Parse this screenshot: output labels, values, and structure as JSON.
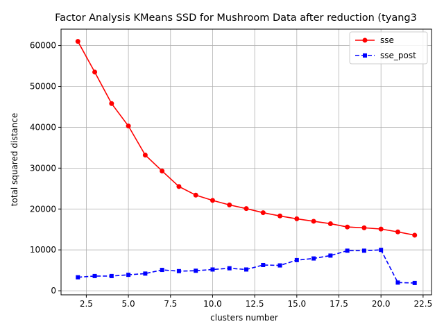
{
  "chart_data": {
    "type": "line",
    "title": "Factor Analysis KMeans SSD for Mushroom Data after reduction (tyang3",
    "xlabel": "clusters number",
    "ylabel": "total squared distance",
    "xlim": [
      1.0,
      23.0
    ],
    "ylim": [
      -1000,
      64000
    ],
    "xticks": [
      2.5,
      5.0,
      7.5,
      10.0,
      12.5,
      15.0,
      17.5,
      20.0,
      22.5
    ],
    "xtick_labels": [
      "2.5",
      "5.0",
      "7.5",
      "10.0",
      "12.5",
      "15.0",
      "17.5",
      "20.0",
      "22.5"
    ],
    "yticks": [
      0,
      10000,
      20000,
      30000,
      40000,
      50000,
      60000
    ],
    "ytick_labels": [
      "0",
      "10000",
      "20000",
      "30000",
      "40000",
      "50000",
      "60000"
    ],
    "grid": true,
    "legend_position": "top-right",
    "x": [
      2,
      3,
      4,
      5,
      6,
      7,
      8,
      9,
      10,
      11,
      12,
      13,
      14,
      15,
      16,
      17,
      18,
      19,
      20,
      21,
      22
    ],
    "series": [
      {
        "name": "sse",
        "color": "#ff0000",
        "line_style": "solid",
        "marker": "circle",
        "values": [
          61000,
          53500,
          45800,
          40300,
          33200,
          29300,
          25500,
          23400,
          22100,
          21000,
          20100,
          19100,
          18300,
          17600,
          17000,
          16400,
          15600,
          15400,
          15100,
          14400,
          13600
        ]
      },
      {
        "name": "sse_post",
        "color": "#0000ff",
        "line_style": "dashed",
        "marker": "square",
        "values": [
          3300,
          3600,
          3600,
          3900,
          4200,
          5100,
          4800,
          4900,
          5200,
          5500,
          5200,
          6300,
          6200,
          7500,
          7900,
          8600,
          9800,
          9800,
          10000,
          2000,
          1900
        ]
      }
    ]
  }
}
